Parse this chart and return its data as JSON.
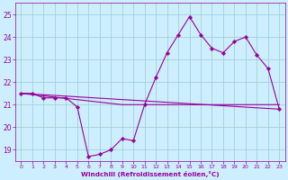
{
  "bg_color": "#cceeff",
  "grid_color": "#99cccc",
  "line_color": "#990099",
  "xlabel": "Windchill (Refroidissement éolien,°C)",
  "x_min": -0.5,
  "x_max": 23.5,
  "y_min": 18.5,
  "y_max": 25.5,
  "yticks": [
    19,
    20,
    21,
    22,
    23,
    24,
    25
  ],
  "xticks": [
    0,
    1,
    2,
    3,
    4,
    5,
    6,
    7,
    8,
    9,
    10,
    11,
    12,
    13,
    14,
    15,
    16,
    17,
    18,
    19,
    20,
    21,
    22,
    23
  ],
  "main_x": [
    0,
    1,
    2,
    3,
    4,
    5,
    6,
    7,
    8,
    9,
    10,
    11,
    12,
    13,
    14,
    15,
    16,
    17,
    18,
    19,
    20,
    21,
    22,
    23
  ],
  "main_y": [
    21.5,
    21.5,
    21.3,
    21.3,
    21.3,
    20.9,
    18.7,
    18.8,
    19.0,
    19.5,
    19.4,
    21.0,
    22.2,
    23.3,
    24.1,
    24.9,
    24.1,
    23.5,
    23.3,
    23.8,
    24.0,
    23.2,
    22.6,
    20.8
  ],
  "line1_x": [
    0,
    23
  ],
  "line1_y": [
    21.5,
    20.8
  ],
  "line2_x": [
    0,
    9,
    23
  ],
  "line2_y": [
    21.5,
    21.0,
    21.0
  ]
}
